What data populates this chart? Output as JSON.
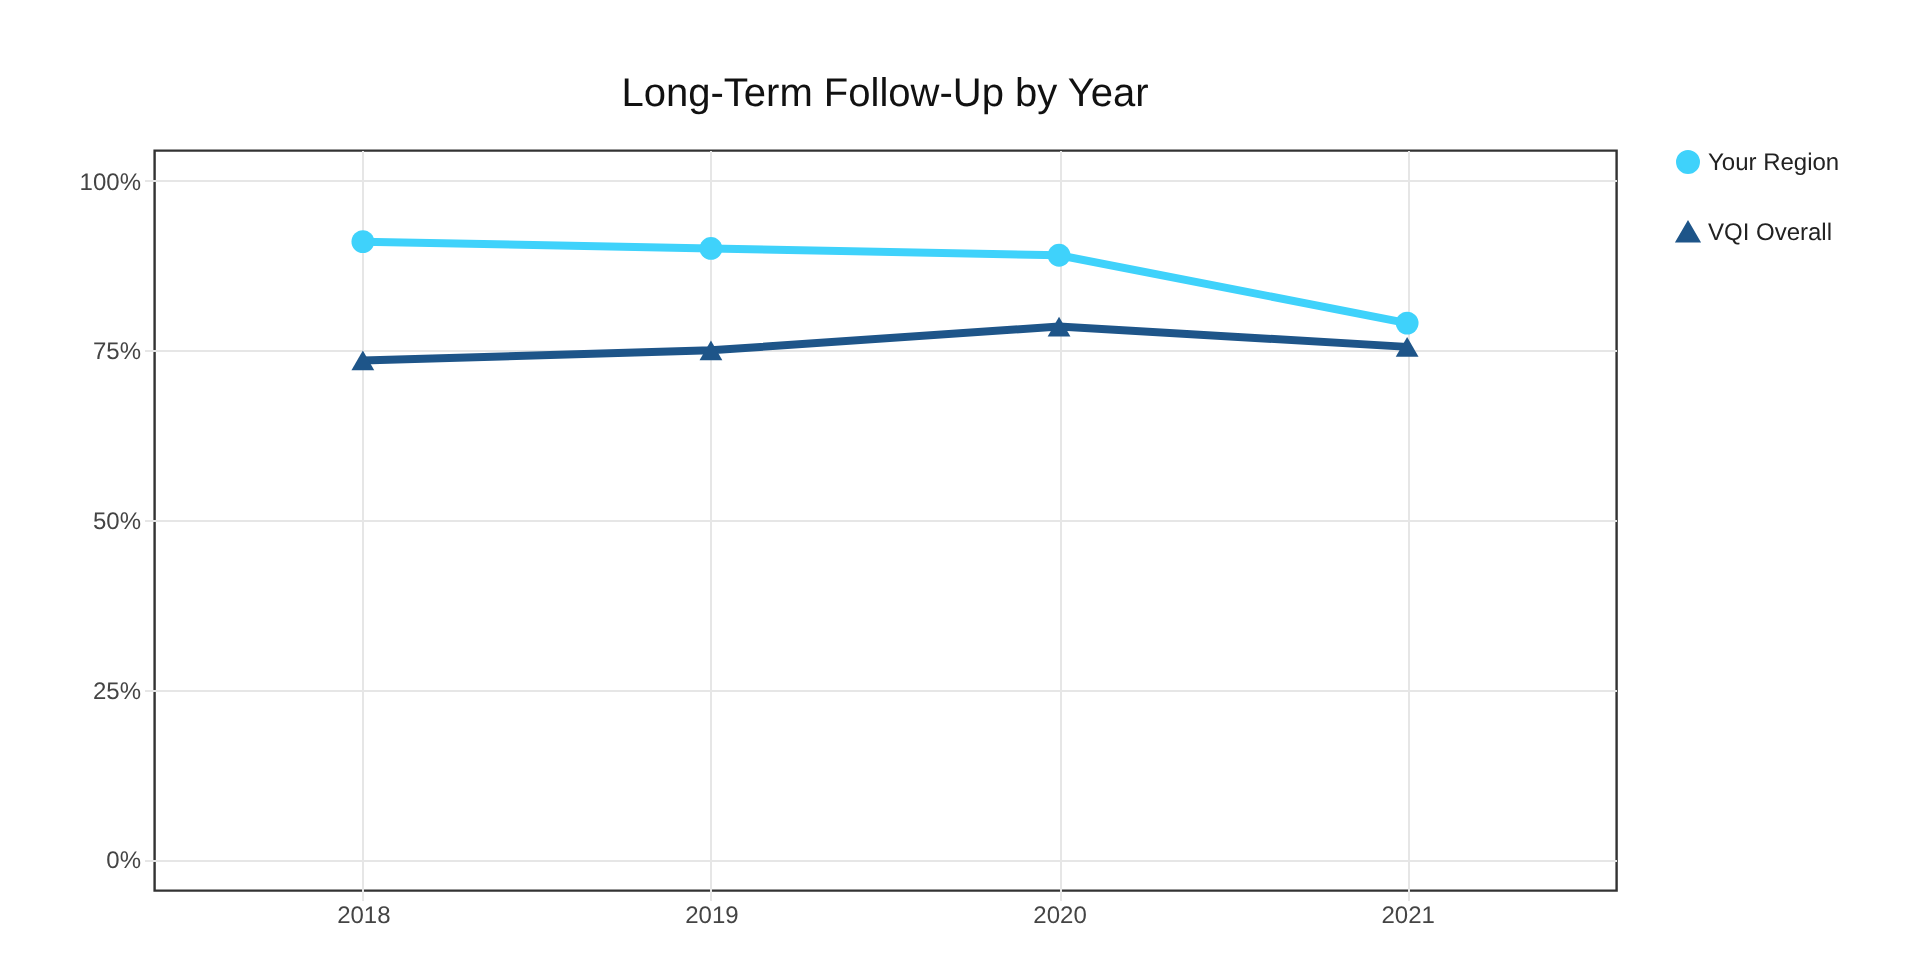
{
  "chart_data": {
    "type": "line",
    "title": "Long-Term Follow-Up by Year",
    "categories": [
      "2018",
      "2019",
      "2020",
      "2021"
    ],
    "series": [
      {
        "name": "Your Region",
        "color": "#3fd2fb",
        "marker": "circle",
        "values": [
          91,
          90,
          89,
          79
        ]
      },
      {
        "name": "VQI Overall",
        "color": "#1e5589",
        "marker": "triangle",
        "values": [
          73.5,
          75,
          78.5,
          75.5
        ]
      }
    ],
    "ylim": [
      -4.5,
      104.5
    ],
    "yticks": [
      {
        "value": 0,
        "label": "0%"
      },
      {
        "value": 25,
        "label": "25%"
      },
      {
        "value": 50,
        "label": "50%"
      },
      {
        "value": 75,
        "label": "75%"
      },
      {
        "value": 100,
        "label": "100%"
      }
    ],
    "grid": true,
    "legend": "top right",
    "line_style": "solid"
  }
}
